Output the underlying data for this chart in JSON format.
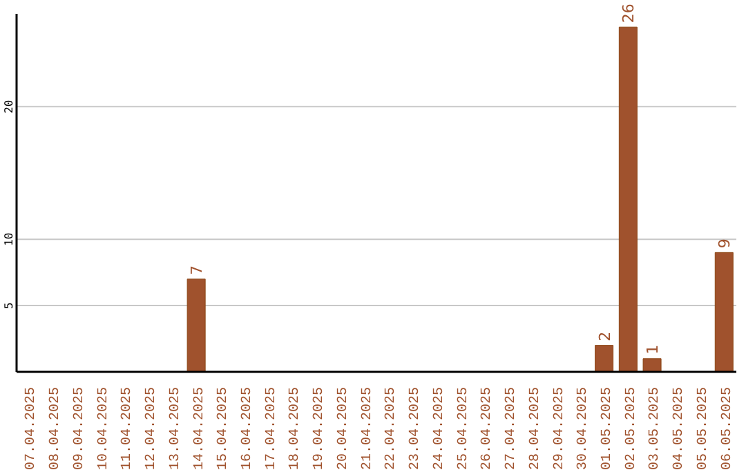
{
  "chart_data": {
    "type": "bar",
    "categories": [
      "07.04.2025",
      "08.04.2025",
      "09.04.2025",
      "10.04.2025",
      "11.04.2025",
      "12.04.2025",
      "13.04.2025",
      "14.04.2025",
      "15.04.2025",
      "16.04.2025",
      "17.04.2025",
      "18.04.2025",
      "19.04.2025",
      "20.04.2025",
      "21.04.2025",
      "22.04.2025",
      "23.04.2025",
      "24.04.2025",
      "25.04.2025",
      "26.04.2025",
      "27.04.2025",
      "28.04.2025",
      "29.04.2025",
      "30.04.2025",
      "01.05.2025",
      "02.05.2025",
      "03.05.2025",
      "04.05.2025",
      "05.05.2025",
      "06.05.2025"
    ],
    "values": [
      0,
      0,
      0,
      0,
      0,
      0,
      0,
      7,
      0,
      0,
      0,
      0,
      0,
      0,
      0,
      0,
      0,
      0,
      0,
      0,
      0,
      0,
      0,
      0,
      2,
      26,
      1,
      0,
      0,
      9
    ],
    "value_labels": [
      null,
      null,
      null,
      null,
      null,
      null,
      null,
      "7",
      null,
      null,
      null,
      null,
      null,
      null,
      null,
      null,
      null,
      null,
      null,
      null,
      null,
      null,
      null,
      null,
      "2",
      "26",
      "1",
      null,
      null,
      "9"
    ],
    "color": "#a0522d",
    "ylim": [
      0,
      27
    ],
    "yticks": [
      5,
      10,
      20
    ],
    "grid": "y"
  }
}
